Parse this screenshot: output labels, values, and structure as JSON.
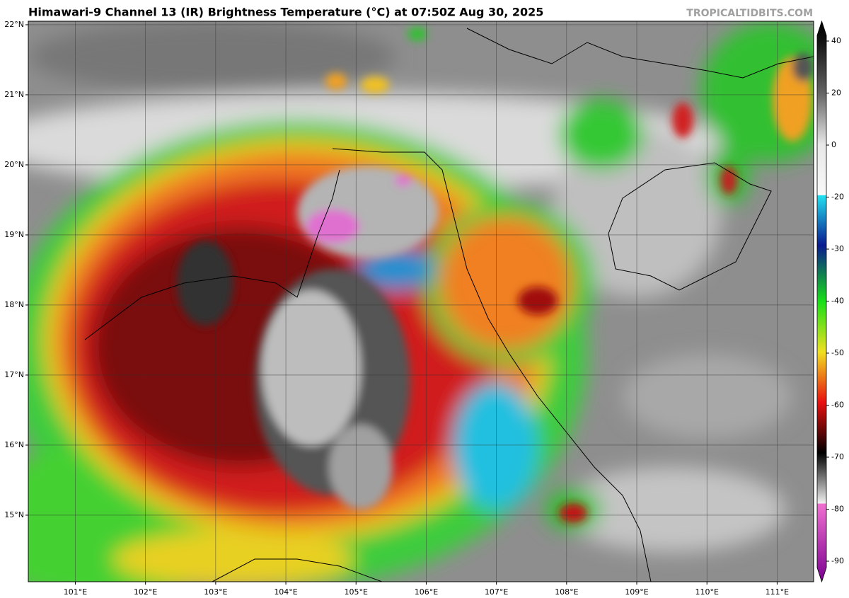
{
  "header": {
    "title": "Himawari-9 Channel 13 (IR) Brightness Temperature (°C) at 07:50Z Aug 30, 2025",
    "credit": "TROPICALTIDBITS.COM"
  },
  "map": {
    "xlim": [
      100.33,
      111.52
    ],
    "ylim": [
      14.05,
      22.05
    ],
    "xticks": [
      {
        "value": 101,
        "label": "101°E"
      },
      {
        "value": 102,
        "label": "102°E"
      },
      {
        "value": 103,
        "label": "103°E"
      },
      {
        "value": 104,
        "label": "104°E"
      },
      {
        "value": 105,
        "label": "105°E"
      },
      {
        "value": 106,
        "label": "106°E"
      },
      {
        "value": 107,
        "label": "107°E"
      },
      {
        "value": 108,
        "label": "108°E"
      },
      {
        "value": 109,
        "label": "109°E"
      },
      {
        "value": 110,
        "label": "110°E"
      },
      {
        "value": 111,
        "label": "111°E"
      }
    ],
    "yticks": [
      {
        "value": 15,
        "label": "15°N"
      },
      {
        "value": 16,
        "label": "16°N"
      },
      {
        "value": 17,
        "label": "17°N"
      },
      {
        "value": 18,
        "label": "18°N"
      },
      {
        "value": 19,
        "label": "19°N"
      },
      {
        "value": 20,
        "label": "20°N"
      },
      {
        "value": 21,
        "label": "21°N"
      },
      {
        "value": 22,
        "label": "22°N"
      }
    ],
    "grid": true
  },
  "colorbar": {
    "ticks": [
      40,
      20,
      0,
      -20,
      -30,
      -40,
      -50,
      -60,
      -70,
      -80,
      -90
    ]
  }
}
